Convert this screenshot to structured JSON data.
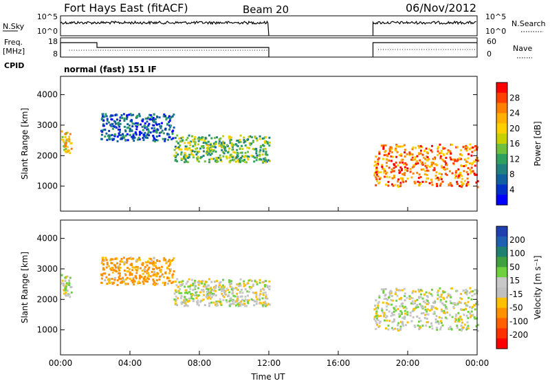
{
  "header": {
    "station": "Fort Hays East (fitACF)",
    "beam": "Beam 20",
    "date": "06/Nov/2012"
  },
  "noise_panel": {
    "left_label": "N.Sky",
    "right_label": "N.Search",
    "left_ticks": [
      "10^5",
      "10^0"
    ],
    "right_ticks": [
      "10^5",
      "10^0"
    ]
  },
  "freq_panel": {
    "left_label_line1": "Freq.",
    "left_label_line2": "[MHz]",
    "right_label": "Nave",
    "left_ticks": [
      "18",
      "8"
    ],
    "right_ticks": [
      "60",
      "0"
    ],
    "cpid_label": "CPID",
    "cpid_text": "normal (fast) 151 IF"
  },
  "colorbars": {
    "power": {
      "label": "Power [dB]",
      "ticks": [
        "28",
        "24",
        "20",
        "16",
        "12",
        "8",
        "4"
      ],
      "colors": [
        "#ff0000",
        "#ff4000",
        "#ff8000",
        "#ffb000",
        "#ffd000",
        "#c8d000",
        "#70c040",
        "#30a060",
        "#208080",
        "#1060a0",
        "#0030c8",
        "#0000ff"
      ]
    },
    "velocity": {
      "label": "Velocity [m s⁻¹]",
      "ticks": [
        "200",
        "100",
        "50",
        "15",
        "-15",
        "-50",
        "-100",
        "-200"
      ],
      "colors": [
        "#2040b0",
        "#2060b0",
        "#208070",
        "#40a040",
        "#70d040",
        "#c8c8c8",
        "#c0c0c0",
        "#ffc000",
        "#ff9000",
        "#ff6000",
        "#ff3000",
        "#ff0000"
      ]
    }
  },
  "chart_data": [
    {
      "type": "heatmap",
      "parameter": "Power [dB]",
      "ylabel": "Slant Range [km]",
      "ylim": [
        180,
        4600
      ],
      "yticks": [
        "1000",
        "2000",
        "3000",
        "4000"
      ],
      "xlim": [
        "00:00",
        "24:00"
      ],
      "data_gap": [
        "12:00",
        "18:00"
      ],
      "scatter_bands": [
        {
          "start_h": 0.0,
          "end_h": 0.6,
          "range_km": [
            2100,
            2900
          ],
          "power_db": 20
        },
        {
          "start_h": 2.3,
          "end_h": 6.5,
          "range_km": [
            2500,
            3400
          ],
          "power_db": 6
        },
        {
          "start_h": 6.5,
          "end_h": 12.0,
          "range_km": [
            1800,
            2700
          ],
          "power_db": 14
        },
        {
          "start_h": 18.0,
          "end_h": 24.0,
          "range_km": [
            1000,
            2400
          ],
          "power_db": 26
        }
      ]
    },
    {
      "type": "heatmap",
      "parameter": "Velocity [m s⁻¹]",
      "ylabel": "Slant Range [km]",
      "ylim": [
        180,
        4600
      ],
      "yticks": [
        "1000",
        "2000",
        "3000",
        "4000"
      ],
      "xlim": [
        "00:00",
        "24:00"
      ],
      "data_gap": [
        "12:00",
        "18:00"
      ],
      "xticks": [
        "00:00",
        "04:00",
        "08:00",
        "12:00",
        "16:00",
        "20:00",
        "00:00"
      ],
      "xlabel": "Time UT",
      "scatter_bands": [
        {
          "start_h": 0.0,
          "end_h": 0.6,
          "range_km": [
            2100,
            2900
          ],
          "velocity_ms": 0
        },
        {
          "start_h": 2.3,
          "end_h": 6.5,
          "range_km": [
            2500,
            3400
          ],
          "velocity_ms": -40
        },
        {
          "start_h": 6.5,
          "end_h": 12.0,
          "range_km": [
            1800,
            2700
          ],
          "velocity_ms": 0
        },
        {
          "start_h": 18.0,
          "end_h": 24.0,
          "range_km": [
            1000,
            2400
          ],
          "velocity_ms": 0
        }
      ]
    }
  ]
}
